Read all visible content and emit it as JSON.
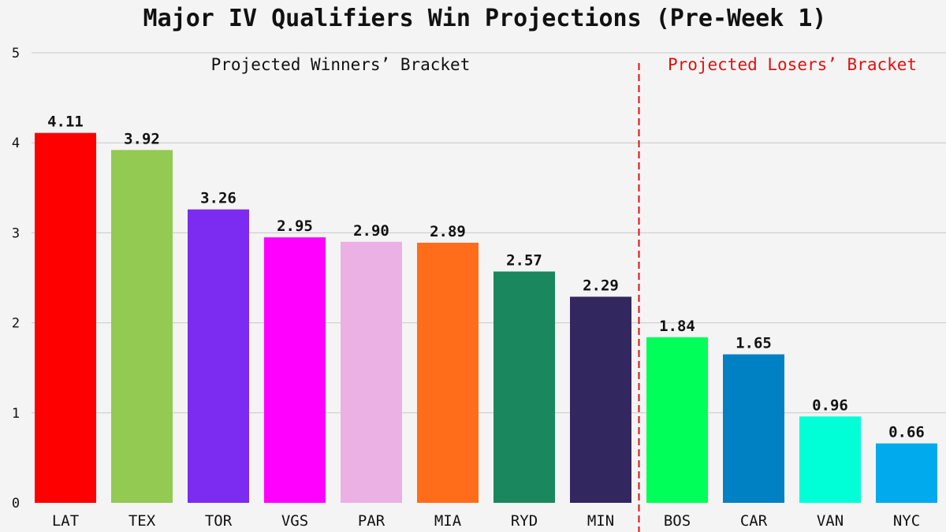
{
  "chart_data": {
    "type": "bar",
    "title": "Major IV Qualifiers Win Projections (Pre-Week 1)",
    "xlabel": "",
    "ylabel": "",
    "ylim": [
      0,
      5
    ],
    "yticks": [
      0,
      1,
      2,
      3,
      4,
      5
    ],
    "grid": true,
    "categories": [
      "LAT",
      "TEX",
      "TOR",
      "VGS",
      "PAR",
      "MIA",
      "RYD",
      "MIN",
      "BOS",
      "CAR",
      "VAN",
      "NYC"
    ],
    "values": [
      4.11,
      3.92,
      3.26,
      2.95,
      2.9,
      2.89,
      2.57,
      2.29,
      1.84,
      1.65,
      0.96,
      0.66
    ],
    "value_labels": [
      "4.11",
      "3.92",
      "3.26",
      "2.95",
      "2.90",
      "2.89",
      "2.57",
      "2.29",
      "1.84",
      "1.65",
      "0.96",
      "0.66"
    ],
    "colors": [
      "#ff0000",
      "#93ca52",
      "#7b2cf0",
      "#ff00ff",
      "#ebb0e4",
      "#ff6d1b",
      "#1b875f",
      "#33275f",
      "#00ff59",
      "#0081c4",
      "#00ffd6",
      "#00aaed"
    ],
    "annotations": [
      {
        "text": "Projected Winners’ Bracket",
        "color": "#111111"
      },
      {
        "text": "Projected Losers’ Bracket",
        "color": "#e01010"
      }
    ],
    "divider_after_category": "MIN",
    "divider_color": "#e01010"
  }
}
